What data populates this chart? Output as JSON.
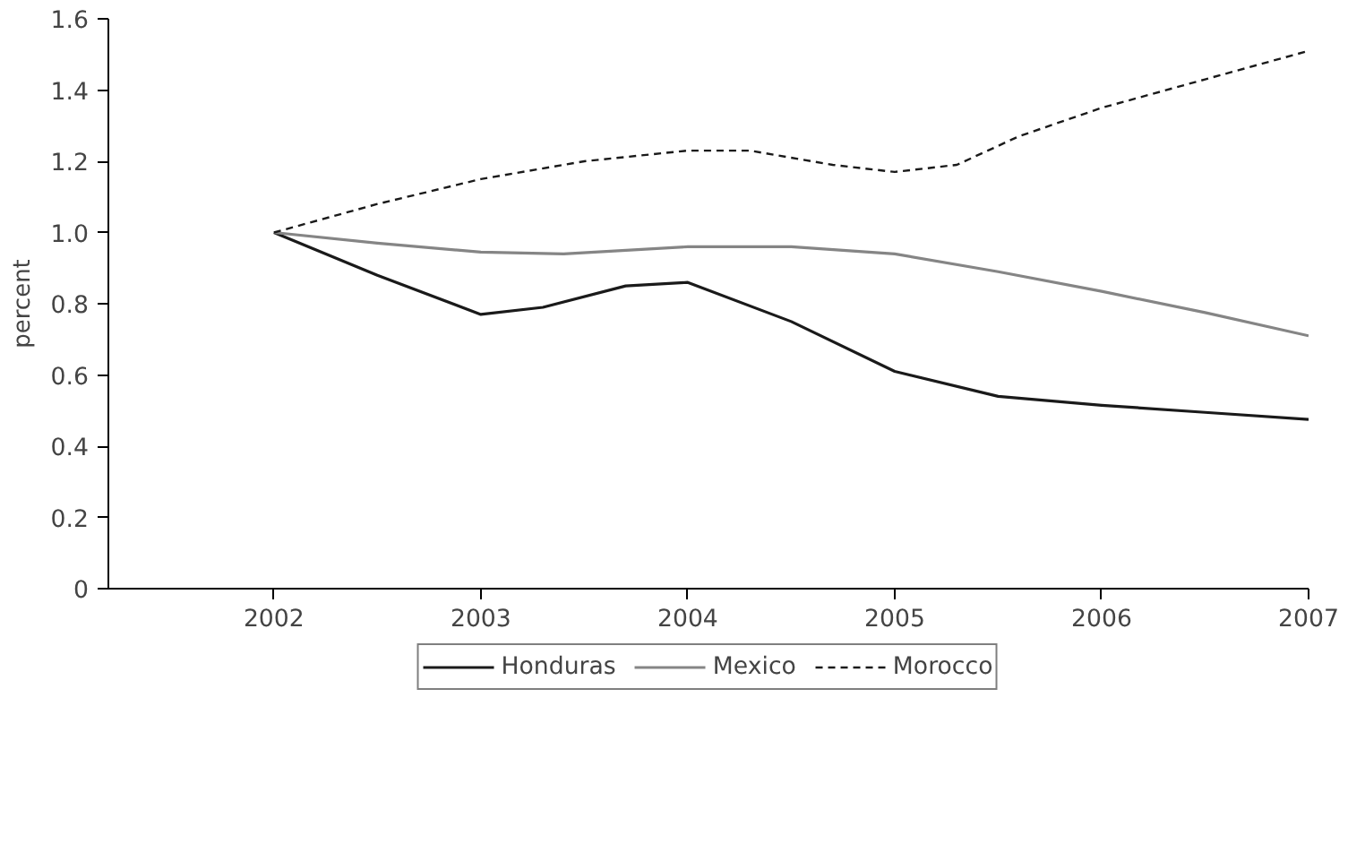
{
  "chart_data": {
    "type": "line",
    "ylabel": "percent",
    "xlim": [
      2001.2,
      2007
    ],
    "ylim": [
      0,
      1.6
    ],
    "xticks": [
      2002,
      2003,
      2004,
      2005,
      2006,
      2007
    ],
    "yticks": [
      0,
      {
        "value": 0.2,
        "label": "0.2"
      },
      {
        "value": 0.4,
        "label": "0.4"
      },
      {
        "value": 0.6,
        "label": "0.6"
      },
      {
        "value": 0.8,
        "label": "0.8"
      },
      {
        "value": 1.0,
        "label": "1.0"
      },
      {
        "value": 1.2,
        "label": "1.2"
      },
      {
        "value": 1.4,
        "label": "1.4"
      },
      {
        "value": 1.6,
        "label": "1.6"
      }
    ],
    "grid": false,
    "legend": "bottom",
    "marker": "none",
    "series": [
      {
        "name": "Honduras",
        "color": "#1a1a1a",
        "line_style": "solid",
        "x": [
          2002,
          2002.5,
          2003,
          2003.3,
          2003.7,
          2004,
          2004.5,
          2005,
          2005.5,
          2006,
          2006.5,
          2007
        ],
        "values": [
          1.0,
          0.88,
          0.77,
          0.79,
          0.85,
          0.86,
          0.75,
          0.61,
          0.54,
          0.515,
          0.495,
          0.475
        ]
      },
      {
        "name": "Mexico",
        "color": "#858585",
        "line_style": "solid",
        "x": [
          2002,
          2002.5,
          2003,
          2003.4,
          2004,
          2004.5,
          2005,
          2005.5,
          2006,
          2006.5,
          2007
        ],
        "values": [
          1.0,
          0.97,
          0.945,
          0.94,
          0.96,
          0.96,
          0.94,
          0.89,
          0.835,
          0.775,
          0.71
        ]
      },
      {
        "name": "Morocco",
        "color": "#1a1a1a",
        "line_style": "dashed",
        "x": [
          2002,
          2002.5,
          2003,
          2003.5,
          2004,
          2004.3,
          2004.7,
          2005,
          2005.3,
          2005.6,
          2006,
          2006.5,
          2007
        ],
        "values": [
          1.0,
          1.08,
          1.15,
          1.2,
          1.23,
          1.23,
          1.19,
          1.17,
          1.19,
          1.27,
          1.35,
          1.43,
          1.51
        ]
      }
    ]
  }
}
